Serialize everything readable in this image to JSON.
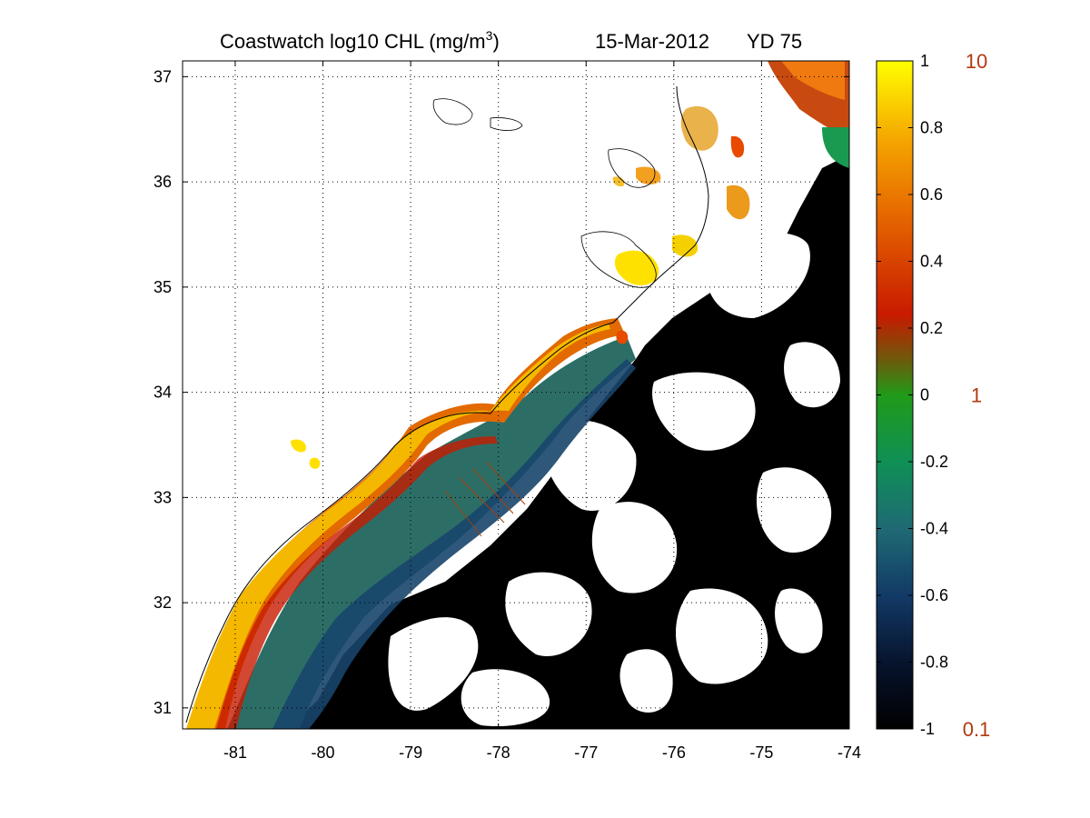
{
  "title": {
    "product": "Coastwatch  log10  CHL (mg/m",
    "superscript": "3",
    "close": ")",
    "date": "15-Mar-2012",
    "yearday": "YD 75"
  },
  "chart_data": {
    "type": "heatmap",
    "variable": "log10 CHL",
    "x_ticks": [
      -81,
      -80,
      -79,
      -78,
      -77,
      -76,
      -75,
      -74
    ],
    "y_ticks": [
      31,
      32,
      33,
      34,
      35,
      36,
      37
    ],
    "x_tick_labels": [
      "-81",
      "-80",
      "-79",
      "-78",
      "-77",
      "-76",
      "-75",
      "-74"
    ],
    "y_tick_labels": [
      "31",
      "32",
      "33",
      "34",
      "35",
      "36",
      "37"
    ],
    "xlim": [
      -81.6,
      -74
    ],
    "ylim": [
      30.8,
      37.15
    ],
    "grid": "dotted",
    "colorbar": {
      "range": [
        -1,
        1
      ],
      "ticks": [
        1,
        0.8,
        0.6,
        0.4,
        0.2,
        0,
        -0.2,
        -0.4,
        -0.6,
        -0.8,
        -1
      ],
      "tick_labels": [
        "1",
        "0.8",
        "0.6",
        "0.4",
        "0.2",
        "0",
        "-0.2",
        "-0.4",
        "-0.6",
        "-0.8",
        "-1"
      ],
      "linear_labels": [
        {
          "value": 1,
          "label": "10"
        },
        {
          "value": 0,
          "label": "1"
        },
        {
          "value": -1,
          "label": "0.1"
        }
      ],
      "colors": [
        "#000000",
        "#0a1a3c",
        "#1e4a78",
        "#0f8a5a",
        "#119a2a",
        "#8a4a10",
        "#c41d00",
        "#e26a00",
        "#f5a800",
        "#ffff00"
      ]
    },
    "colors": {
      "nearshore_high": "#f3a020",
      "shelf_mid": "#2f8060",
      "offshore_low": "#000000",
      "cloud_mask": "#ffffff",
      "coastline": "#000000"
    }
  }
}
